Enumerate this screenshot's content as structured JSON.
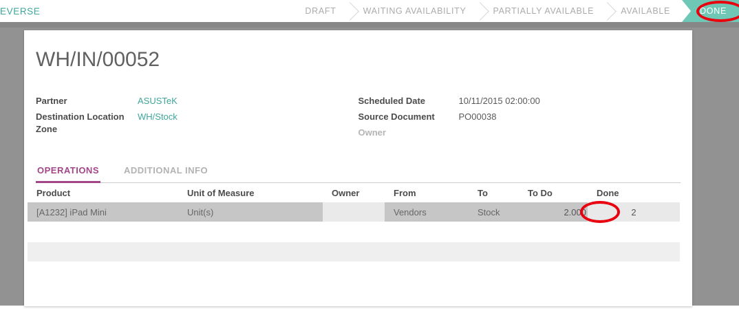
{
  "top_bar": {
    "reverse_label": "EVERSE",
    "statusbar": {
      "steps": [
        {
          "label": "DRAFT",
          "active": false
        },
        {
          "label": "WAITING AVAILABILITY",
          "active": false
        },
        {
          "label": "PARTIALLY AVAILABLE",
          "active": false
        },
        {
          "label": "AVAILABLE",
          "active": false
        },
        {
          "label": "DONE",
          "active": true
        }
      ]
    }
  },
  "document": {
    "title": "WH/IN/00052",
    "fields_left": [
      {
        "label": "Partner",
        "value": "ASUSTeK"
      },
      {
        "label": "Destination Location Zone",
        "value": "WH/Stock"
      }
    ],
    "fields_right": [
      {
        "label": "Scheduled Date",
        "value": "10/11/2015 02:00:00"
      },
      {
        "label": "Source Document",
        "value": "PO00038"
      },
      {
        "label": "Owner",
        "value": ""
      }
    ],
    "tabs": [
      {
        "label": "OPERATIONS",
        "active": true
      },
      {
        "label": "ADDITIONAL INFO",
        "active": false
      }
    ],
    "table": {
      "columns": [
        "Product",
        "Unit of Measure",
        "Owner",
        "From",
        "To",
        "To Do",
        "Done"
      ],
      "rows": [
        [
          "[A1232] iPad Mini",
          "Unit(s)",
          "",
          "Vendors",
          "Stock",
          "2.000",
          "2"
        ]
      ]
    }
  },
  "annotations": {
    "circled_status": "DONE",
    "circled_value": "2.000",
    "color": "#E8000F"
  },
  "colors": {
    "accent_teal": "#3EA69B",
    "done_badge_bg": "#6FC8B5",
    "tab_active": "#A24689",
    "row_bg": "#C6C6C6",
    "page_bg": "#929292"
  }
}
